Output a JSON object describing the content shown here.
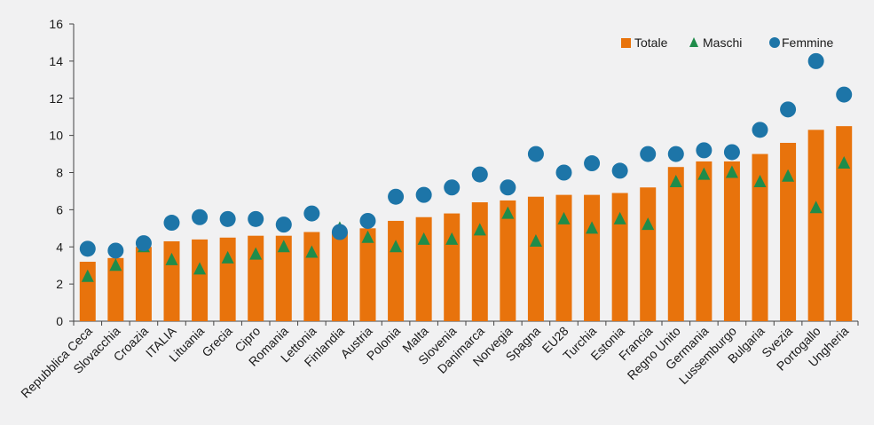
{
  "chart_data": {
    "type": "bar",
    "title": "",
    "xlabel": "",
    "ylabel": "",
    "ylim": [
      0,
      16
    ],
    "yticks": [
      0,
      2,
      4,
      6,
      8,
      10,
      12,
      14,
      16
    ],
    "grid": false,
    "legend_position": "top-right",
    "categories": [
      "Repubblica Ceca",
      "Slovacchia",
      "Croazia",
      "ITALIA",
      "Lituania",
      "Grecia",
      "Cipro",
      "Romania",
      "Lettonia",
      "Finlandia",
      "Austria",
      "Polonia",
      "Malta",
      "Slovenia",
      "Danimarca",
      "Norvegia",
      "Spagna",
      "EU28",
      "Turchia",
      "Estonia",
      "Francia",
      "Regno Unito",
      "Germania",
      "Lussemburgo",
      "Bulgaria",
      "Svezia",
      "Portogallo",
      "Ungheria"
    ],
    "series": [
      {
        "name": "Totale",
        "marker": "bar",
        "color": "#e8730c",
        "values": [
          3.2,
          3.4,
          4.0,
          4.3,
          4.4,
          4.5,
          4.6,
          4.6,
          4.8,
          4.8,
          5.0,
          5.4,
          5.6,
          5.8,
          6.4,
          6.5,
          6.7,
          6.8,
          6.8,
          6.9,
          7.2,
          8.3,
          8.6,
          8.6,
          9.0,
          9.6,
          10.3,
          10.5
        ]
      },
      {
        "name": "Maschi",
        "marker": "triangle",
        "color": "#1f8c4a",
        "values": [
          2.4,
          3.0,
          4.0,
          3.3,
          2.8,
          3.4,
          3.6,
          4.0,
          3.7,
          5.0,
          4.5,
          4.0,
          4.4,
          4.4,
          4.9,
          5.8,
          4.3,
          5.5,
          5.0,
          5.5,
          5.2,
          7.5,
          7.9,
          8.0,
          7.5,
          7.8,
          6.1,
          8.5
        ]
      },
      {
        "name": "Femmine",
        "marker": "circle",
        "color": "#1d75a8",
        "values": [
          3.9,
          3.8,
          4.2,
          5.3,
          5.6,
          5.5,
          5.5,
          5.2,
          5.8,
          4.8,
          5.4,
          6.7,
          6.8,
          7.2,
          7.9,
          7.2,
          9.0,
          8.0,
          8.5,
          8.1,
          9.0,
          9.0,
          9.2,
          9.1,
          10.3,
          11.4,
          14.0,
          12.2
        ]
      }
    ]
  }
}
